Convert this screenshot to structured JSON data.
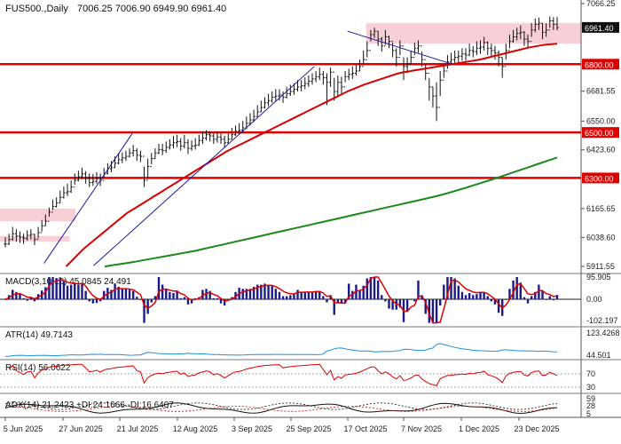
{
  "chart_data": {
    "type": "line",
    "symbol": "FUS500.,Daily",
    "ohlc_header": "7006.25 7006.90 6949.90 6961.40",
    "last_price": "6961.40",
    "main": {
      "ylim": [
        5911.55,
        7066.25
      ],
      "y_ticks": [
        7066.25,
        6681.55,
        6550.0,
        6423.6,
        6165.65,
        6038.6,
        5911.55
      ],
      "x_ticks": [
        "5 Jun 2025",
        "27 Jun 2025",
        "21 Jul 2025",
        "12 Aug 2025",
        "3 Sep 2025",
        "25 Sep 2025",
        "17 Oct 2025",
        "7 Nov 2025",
        "1 Dec 2025",
        "23 Dec 2025"
      ],
      "levels": [
        {
          "value": 6800.0,
          "label": "6800.00",
          "color": "#e00000"
        },
        {
          "value": 6500.0,
          "label": "6500.00",
          "color": "#e00000"
        },
        {
          "value": 6300.0,
          "label": "6300.00",
          "color": "#e00000"
        }
      ],
      "zones": [
        {
          "from": 6890,
          "to": 6980,
          "x_from": 0.63
        },
        {
          "from": 6110,
          "to": 6165,
          "x_from": 0.0,
          "x_to": 0.13
        },
        {
          "from": 6020,
          "to": 6045,
          "x_from": 0.0,
          "x_to": 0.12
        }
      ],
      "close": [
        6010,
        6030,
        6055,
        6045,
        6040,
        6035,
        6048,
        6052,
        6030,
        6060,
        6090,
        6110,
        6150,
        6175,
        6190,
        6215,
        6235,
        6240,
        6260,
        6290,
        6305,
        6318,
        6300,
        6280,
        6285,
        6300,
        6290,
        6320,
        6340,
        6345,
        6365,
        6380,
        6388,
        6395,
        6410,
        6420,
        6400,
        6395,
        6290,
        6350,
        6385,
        6410,
        6425,
        6420,
        6435,
        6445,
        6455,
        6460,
        6440,
        6455,
        6430,
        6440,
        6445,
        6465,
        6475,
        6490,
        6485,
        6470,
        6480,
        6470,
        6455,
        6470,
        6490,
        6505,
        6510,
        6520,
        6540,
        6555,
        6570,
        6590,
        6610,
        6630,
        6640,
        6655,
        6660,
        6665,
        6655,
        6670,
        6680,
        6690,
        6700,
        6705,
        6715,
        6725,
        6735,
        6745,
        6755,
        6740,
        6720,
        6765,
        6680,
        6720,
        6700,
        6745,
        6755,
        6760,
        6770,
        6790,
        6820,
        6860,
        6930,
        6945,
        6910,
        6880,
        6920,
        6900,
        6860,
        6830,
        6880,
        6790,
        6800,
        6830,
        6870,
        6880,
        6820,
        6760,
        6700,
        6660,
        6610,
        6730,
        6770,
        6810,
        6820,
        6830,
        6835,
        6845,
        6840,
        6860,
        6855,
        6870,
        6875,
        6895,
        6870,
        6860,
        6850,
        6830,
        6790,
        6860,
        6900,
        6920,
        6935,
        6940,
        6910,
        6900,
        6950,
        6975,
        6980,
        6940,
        6950,
        6990,
        6975,
        6961
      ],
      "high": [
        6040,
        6055,
        6085,
        6075,
        6065,
        6055,
        6070,
        6075,
        6055,
        6085,
        6115,
        6140,
        6170,
        6205,
        6215,
        6245,
        6262,
        6275,
        6290,
        6320,
        6332,
        6345,
        6330,
        6320,
        6318,
        6325,
        6320,
        6345,
        6365,
        6375,
        6395,
        6410,
        6412,
        6420,
        6430,
        6445,
        6430,
        6420,
        6350,
        6385,
        6410,
        6430,
        6450,
        6450,
        6460,
        6470,
        6485,
        6490,
        6475,
        6490,
        6470,
        6465,
        6475,
        6490,
        6505,
        6510,
        6505,
        6495,
        6505,
        6495,
        6485,
        6495,
        6520,
        6530,
        6540,
        6550,
        6570,
        6585,
        6600,
        6620,
        6640,
        6655,
        6670,
        6680,
        6690,
        6690,
        6680,
        6700,
        6710,
        6715,
        6730,
        6730,
        6742,
        6750,
        6760,
        6770,
        6785,
        6770,
        6760,
        6785,
        6740,
        6750,
        6745,
        6770,
        6780,
        6790,
        6800,
        6820,
        6860,
        6900,
        6950,
        6960,
        6945,
        6920,
        6950,
        6925,
        6895,
        6870,
        6905,
        6830,
        6830,
        6860,
        6895,
        6905,
        6855,
        6800,
        6740,
        6700,
        6720,
        6770,
        6800,
        6840,
        6850,
        6860,
        6860,
        6870,
        6870,
        6890,
        6880,
        6900,
        6905,
        6920,
        6900,
        6890,
        6880,
        6860,
        6830,
        6890,
        6930,
        6950,
        6960,
        6970,
        6945,
        6930,
        6980,
        7000,
        7005,
        6980,
        6980,
        7010,
        7006,
        7007
      ],
      "low": [
        5995,
        6005,
        6025,
        6020,
        6015,
        6010,
        6025,
        6030,
        6005,
        6035,
        6065,
        6090,
        6130,
        6160,
        6170,
        6190,
        6210,
        6220,
        6235,
        6270,
        6285,
        6295,
        6275,
        6260,
        6265,
        6275,
        6265,
        6300,
        6315,
        6325,
        6345,
        6360,
        6365,
        6375,
        6390,
        6395,
        6375,
        6370,
        6260,
        6300,
        6360,
        6385,
        6405,
        6400,
        6410,
        6425,
        6430,
        6435,
        6420,
        6430,
        6405,
        6420,
        6425,
        6440,
        6450,
        6465,
        6460,
        6450,
        6455,
        6450,
        6435,
        6450,
        6470,
        6485,
        6490,
        6500,
        6515,
        6530,
        6545,
        6570,
        6590,
        6605,
        6615,
        6630,
        6635,
        6640,
        6630,
        6650,
        6660,
        6665,
        6680,
        6680,
        6690,
        6700,
        6710,
        6720,
        6730,
        6710,
        6620,
        6700,
        6640,
        6660,
        6670,
        6720,
        6730,
        6735,
        6750,
        6770,
        6800,
        6830,
        6900,
        6915,
        6880,
        6855,
        6885,
        6870,
        6830,
        6790,
        6840,
        6730,
        6760,
        6800,
        6840,
        6850,
        6790,
        6730,
        6640,
        6610,
        6550,
        6660,
        6740,
        6780,
        6800,
        6805,
        6805,
        6815,
        6815,
        6835,
        6830,
        6840,
        6845,
        6860,
        6840,
        6835,
        6820,
        6790,
        6740,
        6820,
        6870,
        6895,
        6905,
        6910,
        6880,
        6870,
        6920,
        6940,
        6950,
        6910,
        6920,
        6960,
        6950,
        6949
      ],
      "series": [
        {
          "name": "",
          "color": "#d80000",
          "kind": "ma",
          "period": 50
        },
        {
          "name": "",
          "color": "#1b8a1b",
          "kind": "ma",
          "period": 150
        }
      ],
      "ma_red": [
        5911,
        5935,
        5960,
        5985,
        6005,
        6025,
        6045,
        6065,
        6085,
        6105,
        6125,
        6145,
        6160,
        6175,
        6190,
        6205,
        6220,
        6235,
        6250,
        6265,
        6280,
        6295,
        6310,
        6325,
        6340,
        6355,
        6370,
        6385,
        6400,
        6415,
        6428,
        6440,
        6452,
        6464,
        6476,
        6488,
        6500,
        6512,
        6524,
        6536,
        6548,
        6560,
        6572,
        6584,
        6596,
        6608,
        6620,
        6632,
        6644,
        6656,
        6668,
        6680,
        6690,
        6700,
        6710,
        6718,
        6726,
        6734,
        6742,
        6750,
        6758,
        6764,
        6768,
        6772,
        6776,
        6780,
        6784,
        6788,
        6792,
        6796,
        6800,
        6804,
        6808,
        6812,
        6816,
        6820,
        6826,
        6832,
        6838,
        6844,
        6850,
        6856,
        6862,
        6868,
        6874,
        6878,
        6882,
        6886,
        6888,
        6890
      ],
      "ma_green": [
        5911,
        5918,
        5925,
        5932,
        5940,
        5948,
        5956,
        5964,
        5972,
        5980,
        5990,
        6000,
        6010,
        6020,
        6030,
        6040,
        6050,
        6060,
        6070,
        6080,
        6090,
        6100,
        6110,
        6120,
        6130,
        6140,
        6150,
        6160,
        6170,
        6180,
        6190,
        6200,
        6210,
        6220,
        6232,
        6245,
        6258,
        6272,
        6286,
        6300,
        6315,
        6330,
        6345,
        6360,
        6375,
        6390
      ],
      "trendlines": [
        {
          "from": [
            0.07,
            5925
          ],
          "to": [
            0.23,
            6495
          ],
          "color": "#1a1aa0"
        },
        {
          "from": [
            0.16,
            5915
          ],
          "to": [
            0.56,
            6790
          ],
          "color": "#1a1aa0"
        },
        {
          "from": [
            0.62,
            6945
          ],
          "to": [
            0.81,
            6800
          ],
          "color": "#1a1aa0"
        }
      ]
    },
    "macd": {
      "label": "MACD(3,10,16) 45.0845 24.491",
      "ylim": [
        -102.197,
        95.905
      ],
      "ticks": [
        "95.905",
        "0.00",
        "-102.197"
      ]
    },
    "atr": {
      "label": "ATR(14) 49.7143",
      "ticks": [
        "123.4268",
        "44.501"
      ]
    },
    "rsi": {
      "label": "RSI(14) 56.0622",
      "ticks": [
        "70",
        "30"
      ]
    },
    "adx": {
      "label": "ADX(14) 21.2423 +DI:24.1666 -DI:16.6407",
      "ticks": [
        "59",
        "28",
        "5"
      ]
    }
  }
}
